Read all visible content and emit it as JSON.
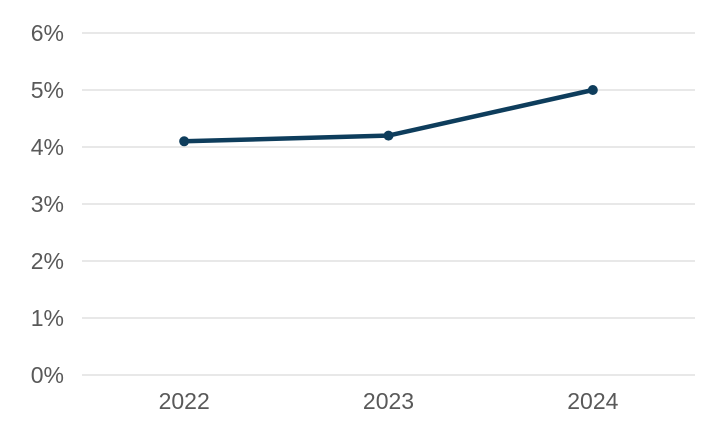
{
  "chart_data": {
    "type": "line",
    "title": "",
    "xlabel": "",
    "ylabel": "",
    "categories": [
      "2022",
      "2023",
      "2024"
    ],
    "values": [
      4.1,
      4.2,
      5.0
    ],
    "series": [
      {
        "name": "",
        "values": [
          4.1,
          4.2,
          5.0
        ]
      }
    ],
    "ylim": [
      0,
      6
    ],
    "y_ticks": [
      "0%",
      "1%",
      "2%",
      "3%",
      "4%",
      "5%",
      "6%"
    ],
    "grid": true,
    "legend": false,
    "marker": "circle",
    "colors": {
      "line": "#0e3d5c",
      "gridline": "#d9d9d9",
      "label": "#595959",
      "background": "#ffffff"
    }
  }
}
